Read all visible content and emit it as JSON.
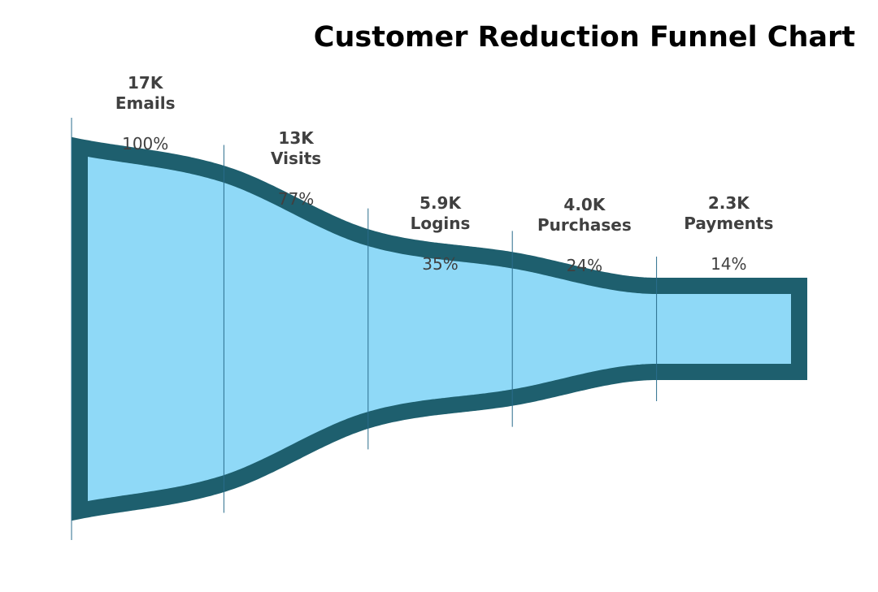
{
  "chart_data": {
    "type": "funnel",
    "title": "Customer Reduction Funnel Chart",
    "stages": [
      {
        "name": "Emails",
        "value_label": "17K",
        "value": 17000,
        "percent_label": "100%",
        "percent": 100
      },
      {
        "name": "Visits",
        "value_label": "13K",
        "value": 13000,
        "percent_label": "77%",
        "percent": 77
      },
      {
        "name": "Logins",
        "value_label": "5.9K",
        "value": 5900,
        "percent_label": "35%",
        "percent": 35
      },
      {
        "name": "Purchases",
        "value_label": "4.0K",
        "value": 4000,
        "percent_label": "24%",
        "percent": 24
      },
      {
        "name": "Payments",
        "value_label": "2.3K",
        "value": 2300,
        "percent_label": "14%",
        "percent": 14
      }
    ],
    "colors": {
      "fill": "#8fd9f7",
      "outline": "#1e5f6e",
      "divider": "#2a6d8c",
      "label_text": "#404040",
      "title_text": "#000000"
    }
  }
}
